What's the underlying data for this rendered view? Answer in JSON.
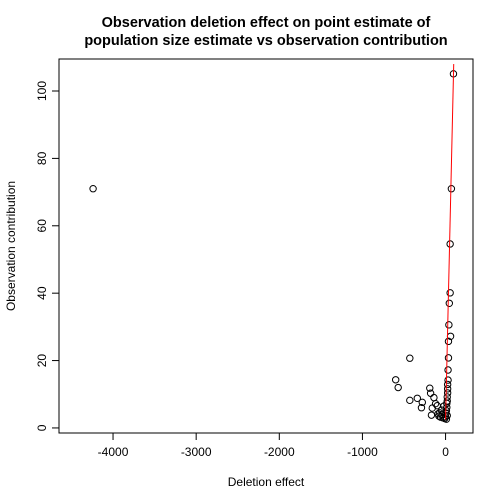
{
  "chart_data": {
    "type": "scatter",
    "title_lines": [
      "Observation deletion effect on point estimate of",
      "population size estimate vs observation contribution"
    ],
    "xlabel": "Deletion effect",
    "ylabel": "Observation contribution",
    "xlim": [
      -4650,
      330
    ],
    "ylim": [
      -1.5,
      109.5
    ],
    "xticks": [
      -4000,
      -3000,
      -2000,
      -1000,
      0
    ],
    "xtick_labels": [
      "-4000",
      "-3000",
      "-2000",
      "-1000",
      "0"
    ],
    "yticks": [
      0,
      20,
      40,
      60,
      80,
      100
    ],
    "ytick_labels": [
      "0",
      "20",
      "40",
      "60",
      "80",
      "100"
    ],
    "grid": false,
    "point_color": "#000000",
    "line_color": "#ff0000",
    "reference_line": {
      "x": [
        0,
        98
      ],
      "y": [
        2.5,
        108
      ]
    },
    "points": [
      {
        "x": -4240,
        "y": 71
      },
      {
        "x": -600,
        "y": 14.3
      },
      {
        "x": -570,
        "y": 12
      },
      {
        "x": -430,
        "y": 20.7
      },
      {
        "x": -430,
        "y": 8.2
      },
      {
        "x": -340,
        "y": 8.8
      },
      {
        "x": -290,
        "y": 6
      },
      {
        "x": -280,
        "y": 7.6
      },
      {
        "x": -190,
        "y": 11.8
      },
      {
        "x": -180,
        "y": 10.3
      },
      {
        "x": -170,
        "y": 3.8
      },
      {
        "x": -160,
        "y": 5.9
      },
      {
        "x": -140,
        "y": 9
      },
      {
        "x": -120,
        "y": 7.2
      },
      {
        "x": -100,
        "y": 6.6
      },
      {
        "x": -90,
        "y": 4.2
      },
      {
        "x": -80,
        "y": 3.5
      },
      {
        "x": -70,
        "y": 4.5
      },
      {
        "x": -60,
        "y": 3.2
      },
      {
        "x": -50,
        "y": 5.3
      },
      {
        "x": -40,
        "y": 4
      },
      {
        "x": -30,
        "y": 3
      },
      {
        "x": -20,
        "y": 6.5
      },
      {
        "x": -10,
        "y": 2.8
      },
      {
        "x": 0,
        "y": 3.3
      },
      {
        "x": 5,
        "y": 4.4
      },
      {
        "x": 10,
        "y": 5.1
      },
      {
        "x": 10,
        "y": 2.6
      },
      {
        "x": 15,
        "y": 6.1
      },
      {
        "x": 15,
        "y": 7.3
      },
      {
        "x": 20,
        "y": 8
      },
      {
        "x": 20,
        "y": 9.2
      },
      {
        "x": 20,
        "y": 3.7
      },
      {
        "x": 25,
        "y": 10.4
      },
      {
        "x": 25,
        "y": 11.6
      },
      {
        "x": 25,
        "y": 12.9
      },
      {
        "x": 30,
        "y": 14.2
      },
      {
        "x": 30,
        "y": 17.2
      },
      {
        "x": 35,
        "y": 20.8
      },
      {
        "x": 35,
        "y": 25.7
      },
      {
        "x": 40,
        "y": 30.6
      },
      {
        "x": 45,
        "y": 37
      },
      {
        "x": 55,
        "y": 40.1
      },
      {
        "x": 55,
        "y": 54.6
      },
      {
        "x": 60,
        "y": 27.2
      },
      {
        "x": 70,
        "y": 71
      },
      {
        "x": 95,
        "y": 105.1
      }
    ]
  }
}
